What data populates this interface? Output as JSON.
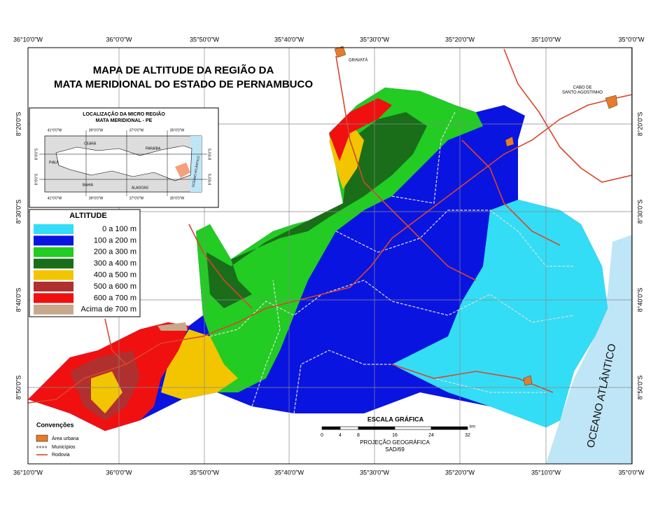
{
  "title": [
    "MAPA DE ALTITUDE DA REGIÃO DA",
    "MATA MERIDIONAL DO ESTADO DE PERNAMBUCO"
  ],
  "top_labels": [
    "36°10'0\"W",
    "36°0'0\"W",
    "35°50'0\"W",
    "35°40'0\"W",
    "35°30'0\"W",
    "35°20'0\"W",
    "35°10'0\"W",
    "35°0'0\"W"
  ],
  "bottom_labels": [
    "36°10'0\"W",
    "36°0'0\"W",
    "35°50'0\"W",
    "35°40'0\"W",
    "35°30'0\"W",
    "35°20'0\"W",
    "35°10'0\"W",
    "35°0'0\"W"
  ],
  "left_labels": [
    "8°20'0\"S",
    "8°30'0\"S",
    "8°40'0\"S",
    "8°50'0\"S"
  ],
  "right_labels": [
    "8°20'0\"S",
    "8°30'0\"S",
    "8°40'0\"S",
    "8°50'0\"S"
  ],
  "inset": {
    "title": [
      "LOCALIZAÇÃO DA MICRO REGIÃO",
      "MATA MERIDIONAL - PE"
    ],
    "top_labels": [
      "41°0'0\"W",
      "39°0'0\"W",
      "37°0'0\"W",
      "35°0'0\"W"
    ],
    "bottom_labels": [
      "41°0'0\"W",
      "39°0'0\"W",
      "37°0'0\"W",
      "35°0'0\"W"
    ],
    "left_labels": [
      "8°0'0\"S",
      "9°0'0\"S"
    ],
    "right_labels": [
      "8°0'0\"S",
      "9°0'0\"S"
    ],
    "states": [
      "CEARÁ",
      "PARAÍBA",
      "PIAUÍ",
      "BAHIA",
      "ALAGOAS",
      "OCEANO ATLÂNTICO"
    ]
  },
  "legend": {
    "title": "ALTITUDE",
    "items": [
      {
        "label": "0 a 100 m",
        "color": "#33ddf5"
      },
      {
        "label": "100 a 200 m",
        "color": "#0a14e0"
      },
      {
        "label": "200 a 300 m",
        "color": "#22cc22"
      },
      {
        "label": "300 a 400 m",
        "color": "#1a6e1a"
      },
      {
        "label": "400 a 500 m",
        "color": "#f2c500"
      },
      {
        "label": "500 a 600 m",
        "color": "#b03030"
      },
      {
        "label": "600 a 700 m",
        "color": "#f01010"
      },
      {
        "label": "Acima de 700 m",
        "color": "#c8a88a"
      }
    ]
  },
  "conventions": {
    "title": "Convenções",
    "items": [
      "Área urbana",
      "Municípios",
      "Rodovia"
    ]
  },
  "scale": {
    "title": "ESCALA GRÁFICA",
    "ticks": [
      0,
      4,
      8,
      16,
      24,
      32
    ],
    "unit": "km",
    "projection": [
      "PROJEÇÃO GEOGRÁFICA",
      "SAD/69"
    ]
  },
  "places": [
    "GRAVATÁ",
    "CABO DE",
    "SANTO AGOSTINHO"
  ],
  "ocean": "OCEANO ATLÂNTICO"
}
